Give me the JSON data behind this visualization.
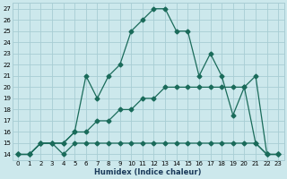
{
  "xlabel": "Humidex (Indice chaleur)",
  "background_color": "#cce8ec",
  "grid_color": "#a8cdd4",
  "line_color": "#1a6b5a",
  "xlim": [
    -0.5,
    23.5
  ],
  "ylim": [
    13.5,
    27.5
  ],
  "xticks": [
    0,
    1,
    2,
    3,
    4,
    5,
    6,
    7,
    8,
    9,
    10,
    11,
    12,
    13,
    14,
    15,
    16,
    17,
    18,
    19,
    20,
    21,
    22,
    23
  ],
  "yticks": [
    14,
    15,
    16,
    17,
    18,
    19,
    20,
    21,
    22,
    23,
    24,
    25,
    26,
    27
  ],
  "line1_x": [
    0,
    1,
    2,
    3,
    4,
    5,
    6,
    7,
    8,
    9,
    10,
    11,
    12,
    13,
    14,
    15,
    16,
    17,
    18,
    19,
    20,
    21,
    22,
    23
  ],
  "line1_y": [
    14,
    14,
    15,
    15,
    14,
    15,
    15,
    15,
    15,
    15,
    15,
    15,
    15,
    15,
    15,
    15,
    15,
    15,
    15,
    15,
    15,
    15,
    14,
    14
  ],
  "line2_x": [
    0,
    1,
    2,
    3,
    4,
    5,
    6,
    7,
    8,
    9,
    10,
    11,
    12,
    13,
    14,
    15,
    16,
    17,
    18,
    19,
    20,
    21,
    22,
    23
  ],
  "line2_y": [
    14,
    14,
    15,
    15,
    15,
    16,
    16,
    17,
    17,
    18,
    18,
    19,
    19,
    20,
    20,
    20,
    20,
    20,
    20,
    20,
    20,
    15,
    14,
    14
  ],
  "line3_x": [
    0,
    1,
    2,
    3,
    4,
    5,
    6,
    7,
    8,
    9,
    10,
    11,
    12,
    13,
    14,
    15,
    16,
    17,
    18,
    19,
    20,
    21,
    22,
    23
  ],
  "line3_y": [
    14,
    14,
    15,
    15,
    15,
    16,
    21,
    19,
    21,
    22,
    25,
    26,
    27,
    27,
    25,
    25,
    21,
    23,
    21,
    17.5,
    20,
    21,
    14,
    14
  ],
  "marker": "D",
  "marker_size": 2.5,
  "linewidth": 0.9
}
